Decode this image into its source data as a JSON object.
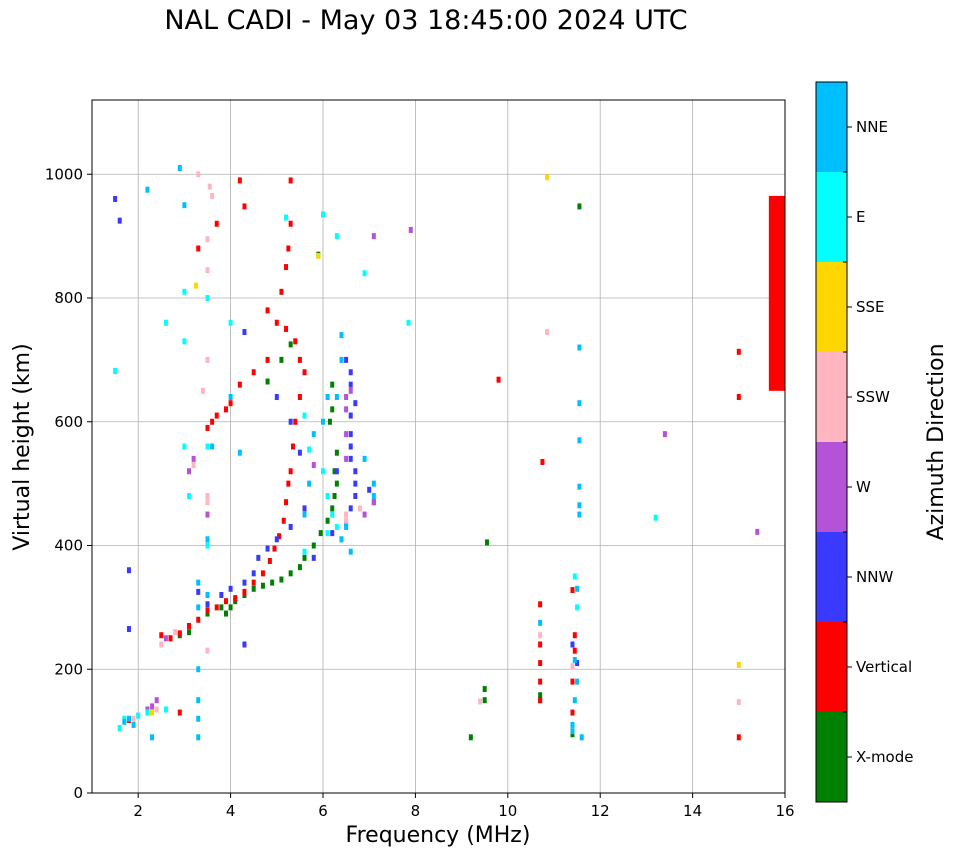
{
  "chart_data": {
    "type": "scatter",
    "title": "NAL CADI - May 03 18:45:00 2024 UTC",
    "xlabel": "Frequency (MHz)",
    "ylabel": "Virtual height (km)",
    "xlim": [
      1,
      16
    ],
    "ylim": [
      0,
      1120
    ],
    "xticks": [
      2,
      4,
      6,
      8,
      10,
      12,
      14,
      16
    ],
    "xtick_labels": [
      "2",
      "4",
      "6",
      "8",
      "10",
      "12",
      "14",
      "16"
    ],
    "yticks": [
      0,
      200,
      400,
      600,
      800,
      1000
    ],
    "ytick_labels": [
      "0",
      "200",
      "400",
      "600",
      "800",
      "1000"
    ],
    "grid": true,
    "colorbar": {
      "label": "Azimuth Direction",
      "categories": [
        "X-mode",
        "Vertical",
        "NNW",
        "W",
        "SSW",
        "SSE",
        "E",
        "NNE"
      ],
      "colors": [
        "#008000",
        "#ff0000",
        "#3a3aff",
        "#b452d8",
        "#ffb6c1",
        "#ffd700",
        "#00ffff",
        "#00bfff"
      ]
    },
    "series": [
      {
        "name": "X-mode",
        "points": [
          [
            2.7,
            250
          ],
          [
            2.9,
            255
          ],
          [
            3.1,
            260
          ],
          [
            3.5,
            290
          ],
          [
            3.8,
            300
          ],
          [
            4.1,
            310
          ],
          [
            4.3,
            320
          ],
          [
            4.5,
            330
          ],
          [
            4.7,
            335
          ],
          [
            4.9,
            340
          ],
          [
            5.1,
            345
          ],
          [
            5.3,
            355
          ],
          [
            5.5,
            365
          ],
          [
            5.6,
            380
          ],
          [
            5.8,
            400
          ],
          [
            5.95,
            420
          ],
          [
            6.1,
            440
          ],
          [
            6.2,
            460
          ],
          [
            6.25,
            480
          ],
          [
            6.3,
            500
          ],
          [
            6.25,
            520
          ],
          [
            6.3,
            550
          ],
          [
            6.15,
            600
          ],
          [
            6.2,
            620
          ],
          [
            6.2,
            660
          ],
          [
            4.8,
            665
          ],
          [
            5.1,
            700
          ],
          [
            5.3,
            725
          ],
          [
            5.9,
            870
          ],
          [
            9.2,
            90
          ],
          [
            9.5,
            150
          ],
          [
            9.5,
            168
          ],
          [
            9.55,
            405
          ],
          [
            10.7,
            150
          ],
          [
            10.7,
            158
          ],
          [
            11.4,
            95
          ],
          [
            11.55,
            948
          ],
          [
            3.9,
            290
          ],
          [
            4.0,
            300
          ]
        ]
      },
      {
        "name": "Vertical",
        "points": [
          [
            1.8,
            118
          ],
          [
            2.5,
            255
          ],
          [
            2.7,
            250
          ],
          [
            2.9,
            258
          ],
          [
            3.1,
            270
          ],
          [
            3.3,
            280
          ],
          [
            3.5,
            295
          ],
          [
            3.7,
            300
          ],
          [
            3.9,
            310
          ],
          [
            4.1,
            315
          ],
          [
            4.3,
            325
          ],
          [
            4.5,
            340
          ],
          [
            4.7,
            355
          ],
          [
            4.85,
            375
          ],
          [
            4.95,
            395
          ],
          [
            5.05,
            415
          ],
          [
            5.15,
            440
          ],
          [
            5.2,
            470
          ],
          [
            5.25,
            500
          ],
          [
            5.3,
            520
          ],
          [
            5.35,
            560
          ],
          [
            5.4,
            600
          ],
          [
            5.5,
            640
          ],
          [
            5.6,
            680
          ],
          [
            5.5,
            700
          ],
          [
            5.4,
            730
          ],
          [
            5.2,
            750
          ],
          [
            5.0,
            760
          ],
          [
            4.8,
            700
          ],
          [
            4.5,
            680
          ],
          [
            4.2,
            660
          ],
          [
            4.0,
            630
          ],
          [
            3.9,
            620
          ],
          [
            3.7,
            610
          ],
          [
            3.6,
            600
          ],
          [
            3.5,
            590
          ],
          [
            4.8,
            780
          ],
          [
            5.1,
            810
          ],
          [
            5.2,
            850
          ],
          [
            5.25,
            880
          ],
          [
            5.3,
            920
          ],
          [
            5.3,
            990
          ],
          [
            4.2,
            990
          ],
          [
            4.3,
            948
          ],
          [
            3.7,
            920
          ],
          [
            3.3,
            880
          ],
          [
            2.9,
            130
          ],
          [
            10.7,
            150
          ],
          [
            10.7,
            180
          ],
          [
            10.7,
            210
          ],
          [
            10.7,
            240
          ],
          [
            10.7,
            305
          ],
          [
            10.75,
            535
          ],
          [
            9.8,
            668
          ],
          [
            11.4,
            130
          ],
          [
            11.4,
            180
          ],
          [
            11.45,
            230
          ],
          [
            11.45,
            255
          ],
          [
            11.4,
            328
          ],
          [
            15.0,
            90
          ],
          [
            15.0,
            640
          ],
          [
            15.0,
            713
          ]
        ]
      },
      {
        "name": "NNW",
        "points": [
          [
            1.5,
            960
          ],
          [
            1.6,
            925
          ],
          [
            1.8,
            265
          ],
          [
            1.8,
            360
          ],
          [
            3.3,
            325
          ],
          [
            3.5,
            305
          ],
          [
            3.8,
            320
          ],
          [
            4.0,
            330
          ],
          [
            4.3,
            340
          ],
          [
            4.5,
            355
          ],
          [
            4.6,
            380
          ],
          [
            4.8,
            395
          ],
          [
            5.0,
            410
          ],
          [
            5.3,
            430
          ],
          [
            5.6,
            460
          ],
          [
            5.8,
            380
          ],
          [
            6.2,
            420
          ],
          [
            6.5,
            435
          ],
          [
            6.6,
            460
          ],
          [
            6.7,
            480
          ],
          [
            6.7,
            500
          ],
          [
            6.7,
            520
          ],
          [
            6.6,
            540
          ],
          [
            6.6,
            560
          ],
          [
            6.6,
            580
          ],
          [
            6.6,
            610
          ],
          [
            6.7,
            630
          ],
          [
            6.6,
            660
          ],
          [
            6.6,
            680
          ],
          [
            6.5,
            700
          ],
          [
            4.3,
            240
          ],
          [
            4.3,
            745
          ],
          [
            5.0,
            640
          ],
          [
            5.3,
            600
          ],
          [
            5.5,
            550
          ],
          [
            6.3,
            520
          ],
          [
            7.1,
            470
          ],
          [
            7.0,
            490
          ],
          [
            11.4,
            240
          ],
          [
            11.5,
            210
          ]
        ]
      },
      {
        "name": "W",
        "points": [
          [
            2.2,
            135
          ],
          [
            2.3,
            140
          ],
          [
            2.4,
            150
          ],
          [
            2.6,
            250
          ],
          [
            3.1,
            520
          ],
          [
            3.2,
            540
          ],
          [
            3.5,
            450
          ],
          [
            5.8,
            530
          ],
          [
            6.5,
            540
          ],
          [
            6.5,
            580
          ],
          [
            6.5,
            620
          ],
          [
            6.5,
            640
          ],
          [
            6.6,
            650
          ],
          [
            6.9,
            450
          ],
          [
            7.1,
            470
          ],
          [
            7.1,
            900
          ],
          [
            7.9,
            910
          ],
          [
            13.4,
            580
          ],
          [
            15.4,
            422
          ]
        ]
      },
      {
        "name": "SSW",
        "points": [
          [
            1.9,
            120
          ],
          [
            2.0,
            125
          ],
          [
            2.3,
            130
          ],
          [
            2.4,
            135
          ],
          [
            2.5,
            240
          ],
          [
            2.8,
            260
          ],
          [
            3.2,
            530
          ],
          [
            3.5,
            480
          ],
          [
            3.5,
            470
          ],
          [
            3.4,
            650
          ],
          [
            3.5,
            700
          ],
          [
            3.5,
            845
          ],
          [
            3.5,
            895
          ],
          [
            3.6,
            965
          ],
          [
            3.55,
            980
          ],
          [
            3.3,
            1000
          ],
          [
            3.5,
            230
          ],
          [
            6.5,
            440
          ],
          [
            6.5,
            450
          ],
          [
            6.8,
            460
          ],
          [
            10.7,
            255
          ],
          [
            10.85,
            745
          ],
          [
            11.4,
            205
          ],
          [
            15.0,
            147
          ],
          [
            9.4,
            148
          ]
        ]
      },
      {
        "name": "SSE",
        "points": [
          [
            2.3,
            130
          ],
          [
            3.25,
            820
          ],
          [
            5.9,
            868
          ],
          [
            10.85,
            995
          ],
          [
            15.0,
            207
          ]
        ]
      },
      {
        "name": "E",
        "points": [
          [
            1.5,
            682
          ],
          [
            1.6,
            105
          ],
          [
            1.7,
            120
          ],
          [
            2.0,
            125
          ],
          [
            2.2,
            130
          ],
          [
            2.6,
            135
          ],
          [
            3.0,
            560
          ],
          [
            3.1,
            480
          ],
          [
            3.5,
            560
          ],
          [
            3.5,
            400
          ],
          [
            3.0,
            730
          ],
          [
            2.6,
            760
          ],
          [
            3.0,
            810
          ],
          [
            3.5,
            800
          ],
          [
            4.0,
            760
          ],
          [
            6.0,
            935
          ],
          [
            6.3,
            900
          ],
          [
            6.9,
            840
          ],
          [
            7.85,
            760
          ],
          [
            5.2,
            930
          ],
          [
            5.6,
            610
          ],
          [
            5.7,
            555
          ],
          [
            6.0,
            520
          ],
          [
            6.1,
            480
          ],
          [
            6.2,
            450
          ],
          [
            6.3,
            430
          ],
          [
            6.4,
            410
          ],
          [
            6.1,
            420
          ],
          [
            5.6,
            390
          ],
          [
            13.2,
            445
          ],
          [
            11.45,
            350
          ],
          [
            11.5,
            300
          ]
        ]
      },
      {
        "name": "NNE",
        "points": [
          [
            1.7,
            115
          ],
          [
            1.8,
            120
          ],
          [
            1.9,
            110
          ],
          [
            2.3,
            90
          ],
          [
            2.2,
            975
          ],
          [
            2.9,
            1010
          ],
          [
            3.0,
            950
          ],
          [
            3.3,
            90
          ],
          [
            3.3,
            120
          ],
          [
            3.3,
            150
          ],
          [
            3.3,
            200
          ],
          [
            3.3,
            300
          ],
          [
            3.3,
            340
          ],
          [
            3.5,
            320
          ],
          [
            3.5,
            410
          ],
          [
            3.6,
            560
          ],
          [
            4.0,
            640
          ],
          [
            4.2,
            550
          ],
          [
            5.6,
            450
          ],
          [
            5.7,
            500
          ],
          [
            5.8,
            580
          ],
          [
            6.0,
            600
          ],
          [
            6.1,
            640
          ],
          [
            6.3,
            640
          ],
          [
            6.4,
            700
          ],
          [
            6.4,
            740
          ],
          [
            6.9,
            540
          ],
          [
            7.1,
            480
          ],
          [
            7.1,
            500
          ],
          [
            6.6,
            390
          ],
          [
            6.4,
            410
          ],
          [
            6.5,
            430
          ],
          [
            10.7,
            275
          ],
          [
            11.4,
            100
          ],
          [
            11.4,
            110
          ],
          [
            11.45,
            150
          ],
          [
            11.5,
            180
          ],
          [
            11.45,
            215
          ],
          [
            11.55,
            450
          ],
          [
            11.55,
            465
          ],
          [
            11.55,
            495
          ],
          [
            11.55,
            570
          ],
          [
            11.55,
            630
          ],
          [
            11.55,
            720
          ],
          [
            11.6,
            90
          ],
          [
            11.5,
            330
          ]
        ]
      }
    ],
    "bars": [
      {
        "name": "Vertical",
        "x0": 15.65,
        "x1": 16.0,
        "y0": 650,
        "y1": 965
      }
    ]
  }
}
